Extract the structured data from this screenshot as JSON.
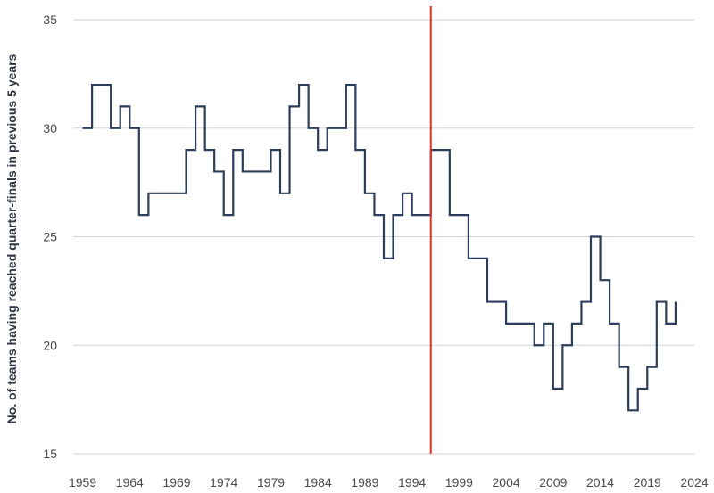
{
  "chart_data": {
    "type": "line",
    "line_style": "step",
    "title": "",
    "xlabel": "",
    "ylabel": "No. of teams having reached quarter-finals in previous 5 years",
    "xlim": [
      1958,
      2024
    ],
    "ylim": [
      15,
      35
    ],
    "x_ticks": [
      "1959",
      "1964",
      "1969",
      "1974",
      "1979",
      "1984",
      "1989",
      "1994",
      "1999",
      "2004",
      "2009",
      "2014",
      "2019",
      "2024"
    ],
    "y_ticks": [
      "15",
      "20",
      "25",
      "30",
      "35"
    ],
    "grid": "horizontal",
    "series_color": "#2c3e5c",
    "marker_color": "#d9302a",
    "vertical_marker_x": 1996,
    "series": [
      {
        "x": [
          1959,
          1960,
          1961,
          1962,
          1963,
          1964,
          1965,
          1966,
          1967,
          1968,
          1969,
          1970,
          1971,
          1972,
          1973,
          1974,
          1975,
          1976,
          1977,
          1978,
          1979,
          1980,
          1981,
          1982,
          1983,
          1984,
          1985,
          1986,
          1987,
          1988,
          1989,
          1990,
          1991,
          1992,
          1993,
          1994,
          1995,
          1996,
          1997,
          1998,
          1999,
          2000,
          2001,
          2002,
          2003,
          2004,
          2005,
          2006,
          2007,
          2008,
          2009,
          2010,
          2011,
          2012,
          2013,
          2014,
          2015,
          2016,
          2017,
          2018,
          2019,
          2020,
          2021,
          2022
        ],
        "values": [
          30,
          32,
          32,
          30,
          31,
          30,
          26,
          27,
          27,
          27,
          27,
          29,
          31,
          29,
          28,
          26,
          29,
          28,
          28,
          28,
          29,
          27,
          31,
          32,
          30,
          29,
          30,
          30,
          32,
          29,
          27,
          26,
          24,
          26,
          27,
          26,
          26,
          29,
          29,
          26,
          26,
          24,
          24,
          22,
          22,
          21,
          21,
          21,
          20,
          21,
          18,
          20,
          21,
          22,
          25,
          23,
          21,
          19,
          17,
          18,
          19,
          22,
          21,
          22
        ]
      }
    ]
  }
}
